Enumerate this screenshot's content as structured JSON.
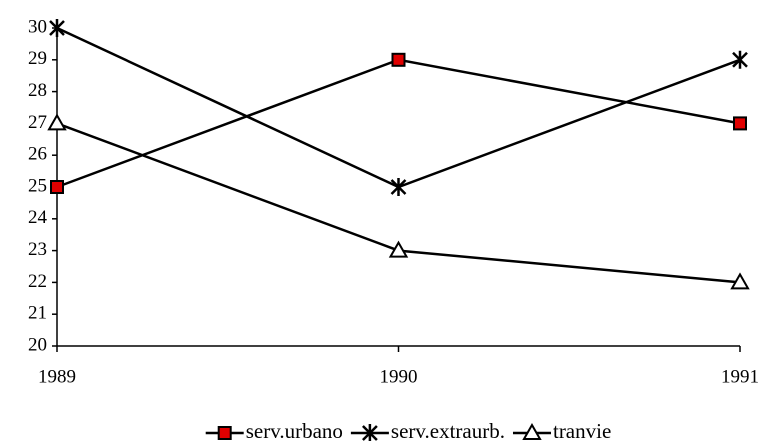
{
  "chart_data": {
    "type": "line",
    "categories": [
      "1989",
      "1990",
      "1991"
    ],
    "series": [
      {
        "name": "serv.urbano",
        "color": "#000000",
        "marker": "square",
        "marker_fill": "#e00000",
        "values": [
          25,
          29,
          27
        ]
      },
      {
        "name": "serv.extraurb.",
        "color": "#000000",
        "marker": "star",
        "marker_fill": "#000000",
        "values": [
          30,
          25,
          29
        ]
      },
      {
        "name": "tranvie",
        "color": "#000000",
        "marker": "triangle",
        "marker_fill": "#ffffff",
        "values": [
          27,
          23,
          22
        ]
      }
    ],
    "ylim": [
      20,
      30
    ],
    "yticks": [
      20,
      21,
      22,
      23,
      24,
      25,
      26,
      27,
      28,
      29,
      30
    ],
    "grid": false,
    "legend": "bottom"
  }
}
